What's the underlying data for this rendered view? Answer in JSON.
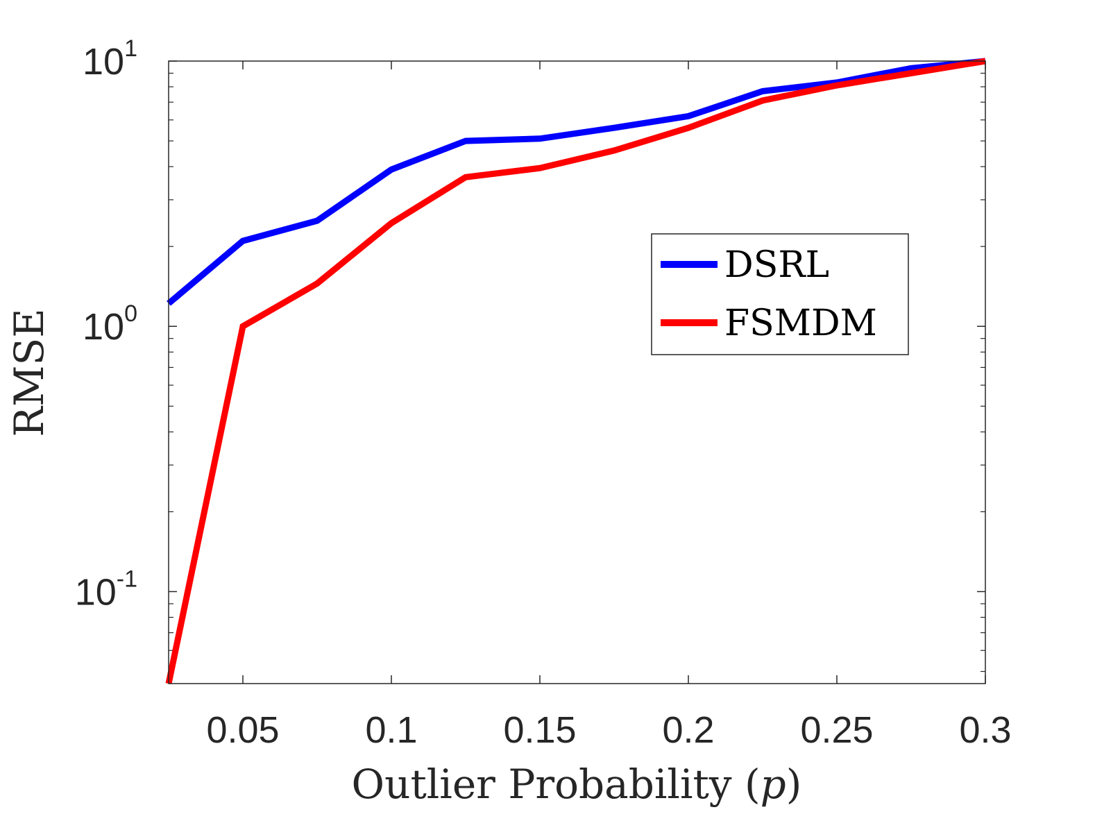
{
  "chart_data": {
    "type": "line",
    "title": "",
    "xlabel": "Outlier Probability",
    "xlabel_symbol": "p",
    "ylabel": "RMSE",
    "y_scale": "log",
    "xlim": [
      0.025,
      0.3
    ],
    "ylim": [
      0.045,
      10
    ],
    "x_ticks": [
      {
        "value": 0.05,
        "label": "0.05"
      },
      {
        "value": 0.1,
        "label": "0.1"
      },
      {
        "value": 0.15,
        "label": "0.15"
      },
      {
        "value": 0.2,
        "label": "0.2"
      },
      {
        "value": 0.25,
        "label": "0.25"
      },
      {
        "value": 0.3,
        "label": "0.3"
      }
    ],
    "y_ticks": [
      {
        "value": 10,
        "base": "10",
        "exp": "1"
      },
      {
        "value": 1,
        "base": "10",
        "exp": "0"
      },
      {
        "value": 0.1,
        "base": "10",
        "exp": "-1"
      }
    ],
    "x": [
      0.025,
      0.05,
      0.075,
      0.1,
      0.125,
      0.15,
      0.175,
      0.2,
      0.225,
      0.25,
      0.275,
      0.3
    ],
    "series": [
      {
        "name": "DSRL",
        "color": "#0000ff",
        "values": [
          1.22,
          2.1,
          2.5,
          3.9,
          5.0,
          5.1,
          5.6,
          6.2,
          7.7,
          8.3,
          9.4,
          10.0
        ]
      },
      {
        "name": "FSMDM",
        "color": "#ff0000",
        "values": [
          0.045,
          1.0,
          1.45,
          2.45,
          3.65,
          3.95,
          4.6,
          5.6,
          7.1,
          8.1,
          9.0,
          10.0
        ]
      }
    ],
    "legend_position": "upper-right-center",
    "grid": false
  }
}
